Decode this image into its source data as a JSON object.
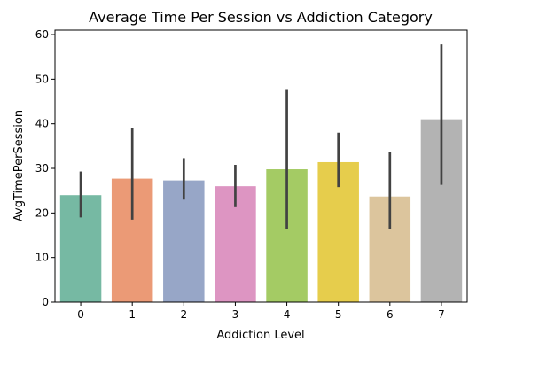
{
  "chart_data": {
    "type": "bar",
    "title": "Average Time Per Session vs Addiction Category",
    "xlabel": "Addiction Level",
    "ylabel": "AvgTimePerSession",
    "categories": [
      "0",
      "1",
      "2",
      "3",
      "4",
      "5",
      "6",
      "7"
    ],
    "values": [
      24.0,
      27.7,
      27.3,
      26.0,
      29.8,
      31.4,
      23.7,
      41.0
    ],
    "error_low": [
      19.0,
      18.5,
      23.0,
      21.3,
      16.5,
      25.8,
      16.5,
      26.3
    ],
    "error_high": [
      29.3,
      39.0,
      32.3,
      30.8,
      47.6,
      38.0,
      33.6,
      57.8
    ],
    "ylim": [
      0,
      61
    ],
    "yticks": [
      0,
      10,
      20,
      30,
      40,
      50,
      60
    ],
    "colors": [
      "#76b9a3",
      "#eb9a76",
      "#97a6c7",
      "#dd95c2",
      "#a4cb64",
      "#e6cd4c",
      "#dcc59d",
      "#b3b3b3"
    ],
    "error_color": "#424242",
    "grid": false,
    "legend": "none"
  }
}
